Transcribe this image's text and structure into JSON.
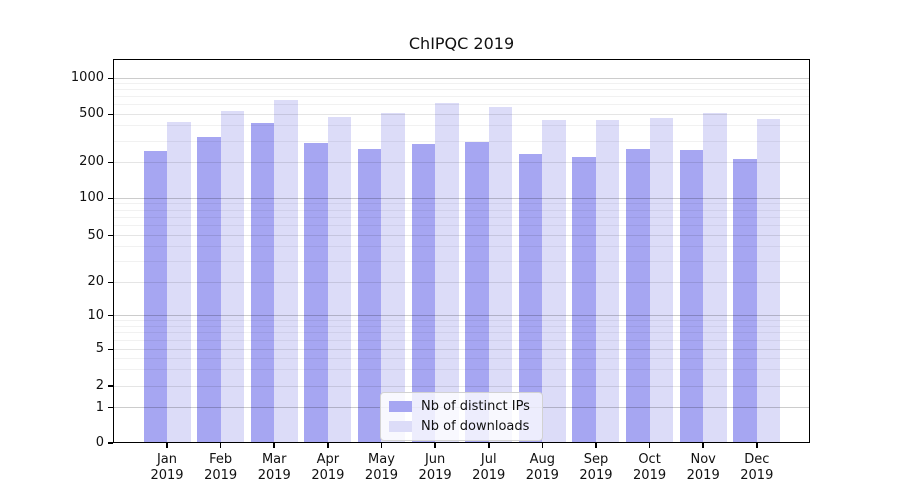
{
  "chart_data": {
    "type": "bar",
    "title": "ChIPQC 2019",
    "categories": [
      "Jan",
      "Feb",
      "Mar",
      "Apr",
      "May",
      "Jun",
      "Jul",
      "Aug",
      "Sep",
      "Oct",
      "Nov",
      "Dec"
    ],
    "x_tick_year_line": "2019",
    "series": [
      {
        "name": "Nb of distinct IPs",
        "color": "#a6a6f2",
        "values": [
          250,
          322,
          421,
          291,
          260,
          282,
          296,
          234,
          220,
          259,
          251,
          211
        ]
      },
      {
        "name": "Nb of downloads",
        "color": "#dcdcf8",
        "values": [
          430,
          534,
          659,
          479,
          511,
          619,
          574,
          449,
          446,
          468,
          511,
          458
        ]
      }
    ],
    "y_axis": {
      "scale": "symlog",
      "tick_labels": [
        "1000",
        "500",
        "200",
        "100",
        "50",
        "20",
        "10",
        "5",
        "2",
        "1",
        "0"
      ],
      "tick_values": [
        1000,
        500,
        200,
        100,
        50,
        20,
        10,
        5,
        2,
        1,
        0
      ],
      "ylim": [
        0,
        1450
      ]
    },
    "grid": "both-major-and-minor",
    "legend_position": "lower-center"
  }
}
